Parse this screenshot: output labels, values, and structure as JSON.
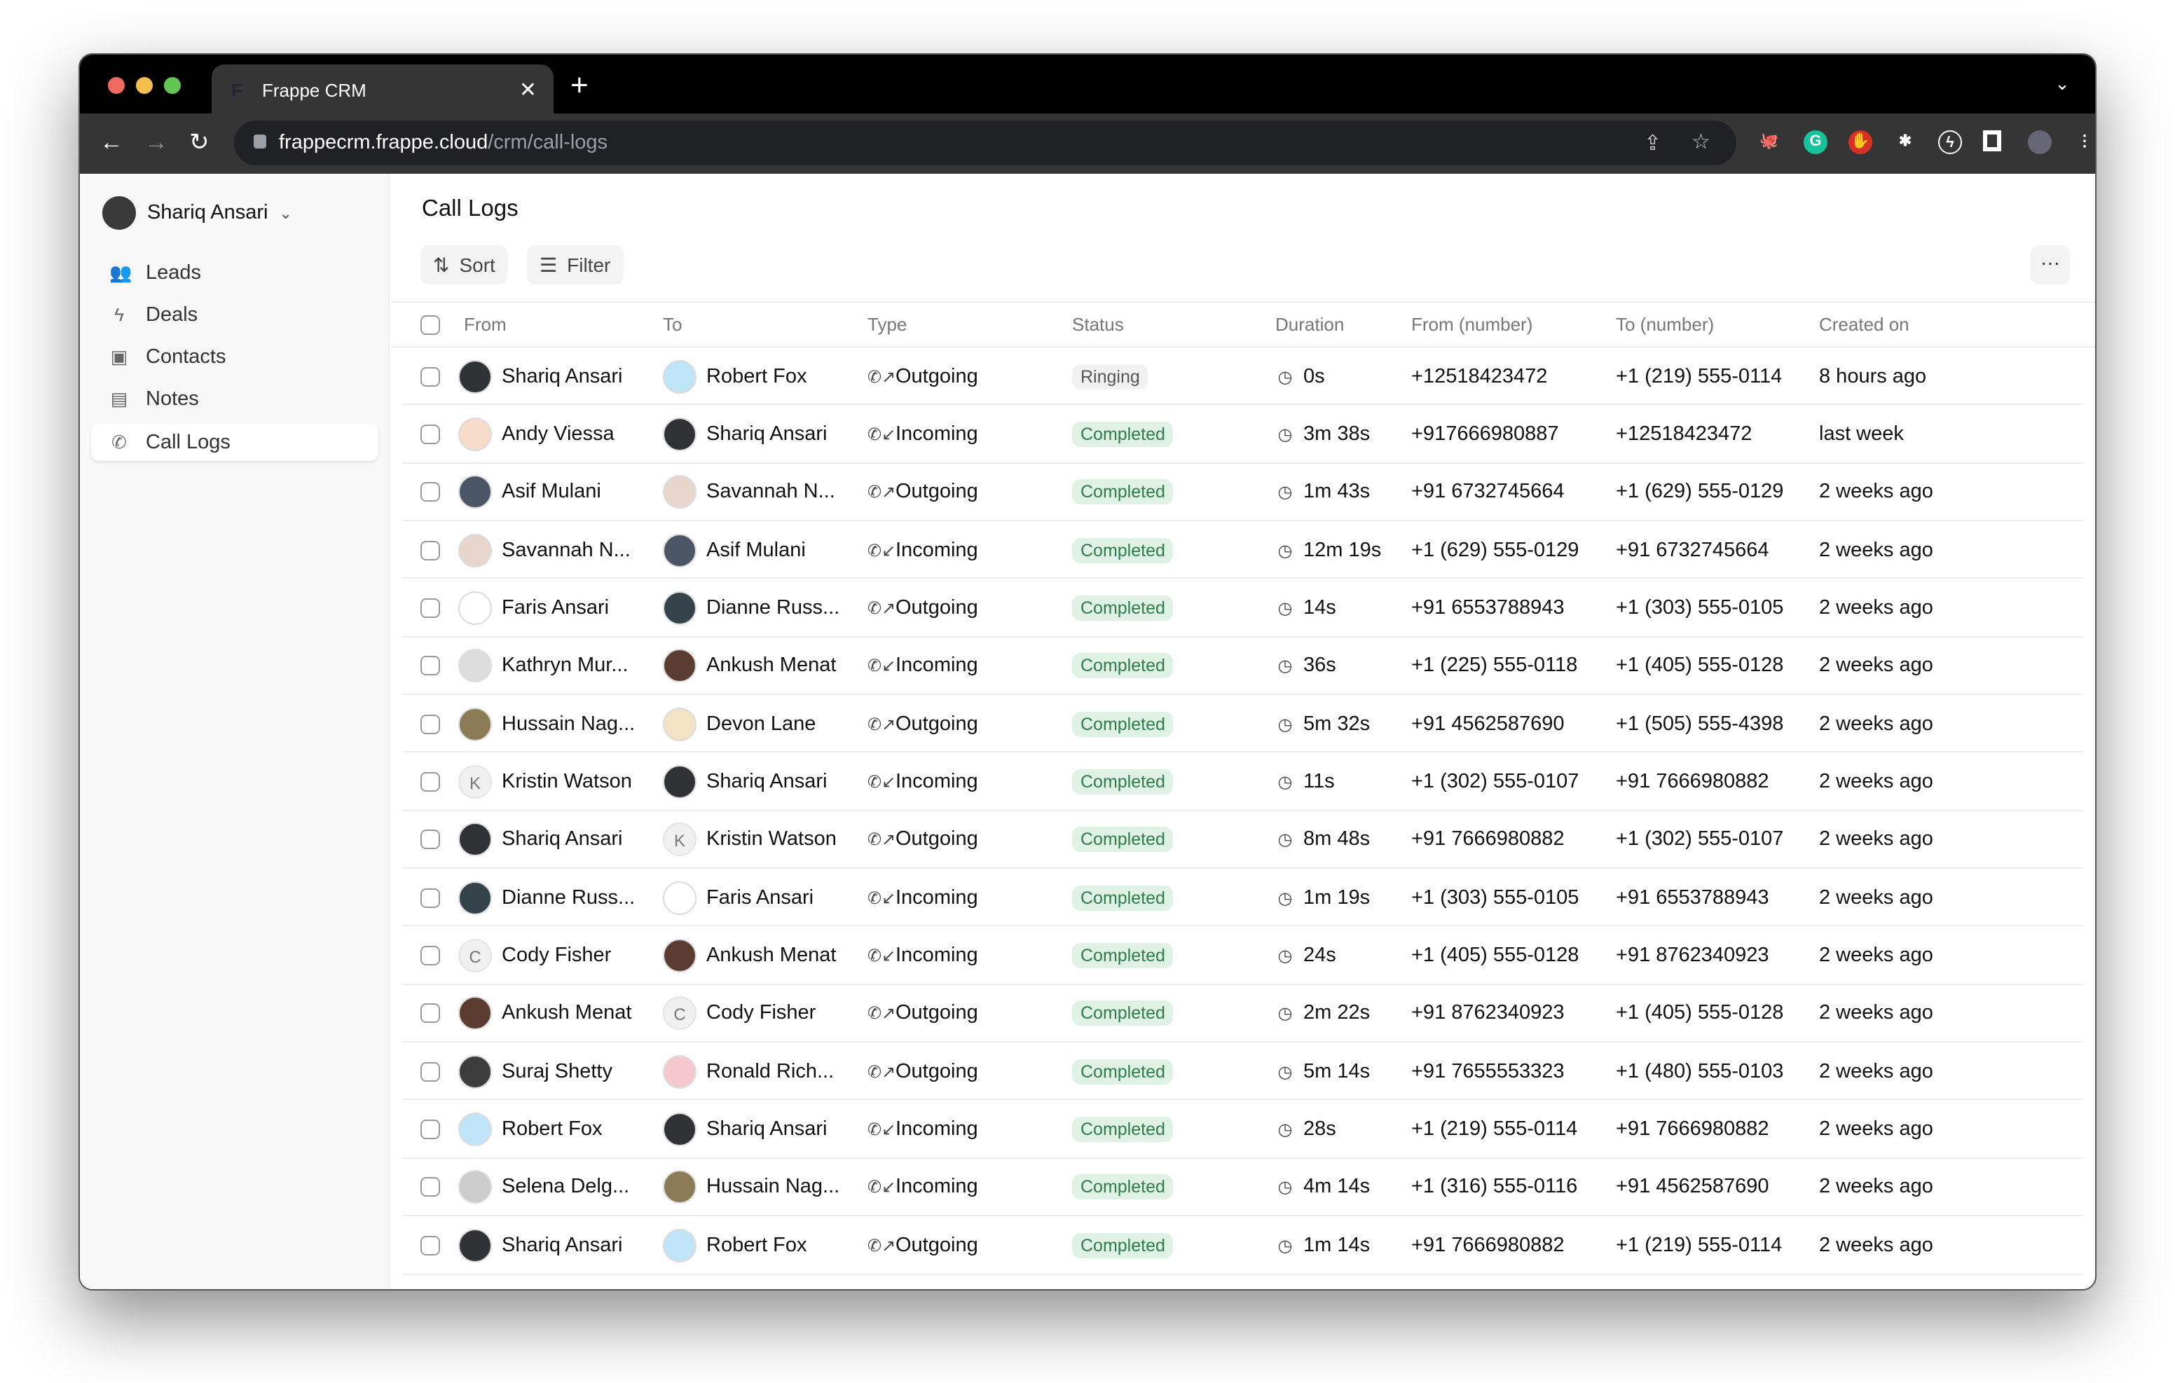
{
  "browser": {
    "tab_title": "Frappe CRM",
    "url_host": "frappecrm.frappe.cloud",
    "url_path": "/crm/call-logs"
  },
  "sidebar": {
    "user": "Shariq Ansari",
    "items": [
      {
        "label": "Leads",
        "icon": "users-icon"
      },
      {
        "label": "Deals",
        "icon": "lightning-icon"
      },
      {
        "label": "Contacts",
        "icon": "contact-card-icon"
      },
      {
        "label": "Notes",
        "icon": "note-icon"
      },
      {
        "label": "Call Logs",
        "icon": "phone-icon",
        "active": true
      }
    ]
  },
  "main": {
    "title": "Call Logs",
    "sort_label": "Sort",
    "filter_label": "Filter",
    "more_label": "···",
    "columns": [
      "From",
      "To",
      "Type",
      "Status",
      "Duration",
      "From (number)",
      "To (number)",
      "Created on"
    ],
    "rows": [
      [
        "Shariq Ansari",
        "Robert Fox",
        "Outgoing",
        "Ringing",
        "0s",
        "+12518423472",
        "+1 (219) 555-0114",
        "8 hours ago"
      ],
      [
        "Andy Viessa",
        "Shariq Ansari",
        "Incoming",
        "Completed",
        "3m 38s",
        "+917666980887",
        "+12518423472",
        "last week"
      ],
      [
        "Asif Mulani",
        "Savannah N...",
        "Outgoing",
        "Completed",
        "1m 43s",
        "+91 6732745664",
        "+1 (629) 555-0129",
        "2 weeks ago"
      ],
      [
        "Savannah N...",
        "Asif Mulani",
        "Incoming",
        "Completed",
        "12m 19s",
        "+1 (629) 555-0129",
        "+91 6732745664",
        "2 weeks ago"
      ],
      [
        "Faris Ansari",
        "Dianne Russ...",
        "Outgoing",
        "Completed",
        "14s",
        "+91 6553788943",
        "+1 (303) 555-0105",
        "2 weeks ago"
      ],
      [
        "Kathryn Mur...",
        "Ankush Menat",
        "Incoming",
        "Completed",
        "36s",
        "+1 (225) 555-0118",
        "+1 (405) 555-0128",
        "2 weeks ago"
      ],
      [
        "Hussain Nag...",
        "Devon Lane",
        "Outgoing",
        "Completed",
        "5m 32s",
        "+91 4562587690",
        "+1 (505) 555-4398",
        "2 weeks ago"
      ],
      [
        "Kristin Watson",
        "Shariq Ansari",
        "Incoming",
        "Completed",
        "11s",
        "+1 (302) 555-0107",
        "+91 7666980882",
        "2 weeks ago"
      ],
      [
        "Shariq Ansari",
        "Kristin Watson",
        "Outgoing",
        "Completed",
        "8m 48s",
        "+91 7666980882",
        "+1 (302) 555-0107",
        "2 weeks ago"
      ],
      [
        "Dianne Russ...",
        "Faris Ansari",
        "Incoming",
        "Completed",
        "1m 19s",
        "+1 (303) 555-0105",
        "+91 6553788943",
        "2 weeks ago"
      ],
      [
        "Cody Fisher",
        "Ankush Menat",
        "Incoming",
        "Completed",
        "24s",
        "+1 (405) 555-0128",
        "+91 8762340923",
        "2 weeks ago"
      ],
      [
        "Ankush Menat",
        "Cody Fisher",
        "Outgoing",
        "Completed",
        "2m 22s",
        "+91 8762340923",
        "+1 (405) 555-0128",
        "2 weeks ago"
      ],
      [
        "Suraj Shetty",
        "Ronald Rich...",
        "Outgoing",
        "Completed",
        "5m 14s",
        "+91 7655553323",
        "+1 (480) 555-0103",
        "2 weeks ago"
      ],
      [
        "Robert Fox",
        "Shariq Ansari",
        "Incoming",
        "Completed",
        "28s",
        "+1 (219) 555-0114",
        "+91 7666980882",
        "2 weeks ago"
      ],
      [
        "Selena Delg...",
        "Hussain Nag...",
        "Incoming",
        "Completed",
        "4m 14s",
        "+1 (316) 555-0116",
        "+91 4562587690",
        "2 weeks ago"
      ],
      [
        "Shariq Ansari",
        "Robert Fox",
        "Outgoing",
        "Completed",
        "1m 14s",
        "+91 7666980882",
        "+1 (219) 555-0114",
        "2 weeks ago"
      ]
    ]
  },
  "colors": {
    "completed_bg": "#e0f2e6",
    "completed_text": "#2e7d4b",
    "ringing_bg": "#f1f1f1"
  }
}
